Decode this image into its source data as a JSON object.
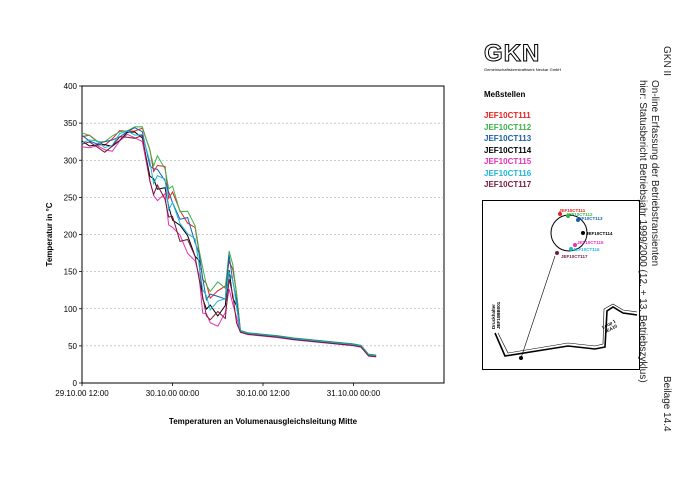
{
  "logo": {
    "text": "GKN",
    "subtitle": "Gemeinschaftskernkraftwerk Neckar GmbH"
  },
  "side_text": {
    "line1": "GKN II",
    "line2": "On-line Erfassung der Betriebstransienten",
    "line3": "hier: Statusbericht Betriebsjahr 1999/2000 (12. + 13. Betriebszyklus)",
    "beilage": "Beilage 14.4"
  },
  "legend_title": "Meßstellen",
  "inset": {
    "labels": [
      "JEF10CT111",
      "JEF10CT112",
      "JEF10CT113",
      "JEF10CT114",
      "JEF10CT115",
      "JEF10CT116",
      "JEF10CT117"
    ],
    "left_label": "Druckhalter\nJEF10BB001",
    "right_label": "Loop 1\nJEA10"
  },
  "chart_data": {
    "type": "line",
    "title": "",
    "xlabel": "Temperaturen an Volumenausgleichsleitung Mitte",
    "ylabel": "Temperatur in °C",
    "ylim": [
      0,
      400
    ],
    "yticks": [
      0,
      50,
      100,
      150,
      200,
      250,
      300,
      350,
      400
    ],
    "xlim": [
      0,
      48
    ],
    "xticks": [
      {
        "pos": 0,
        "label": "29.10.00 12:00"
      },
      {
        "pos": 12,
        "label": "30.10.00 00:00"
      },
      {
        "pos": 24,
        "label": "30.10.00 12:00"
      },
      {
        "pos": 36,
        "label": "31.10.00 00:00"
      }
    ],
    "grid": true,
    "legend_position": "right",
    "series": [
      {
        "name": "JEF10CT111",
        "color": "#e8211d",
        "offset": 3
      },
      {
        "name": "JEF10CT112",
        "color": "#3cb14a",
        "offset": 6
      },
      {
        "name": "JEF10CT113",
        "color": "#1b5faa",
        "offset": 0
      },
      {
        "name": "JEF10CT114",
        "color": "#000000",
        "offset": -8
      },
      {
        "name": "JEF10CT115",
        "color": "#e831b7",
        "offset": -15
      },
      {
        "name": "JEF10CT116",
        "color": "#1fb6d8",
        "offset": -4
      },
      {
        "name": "JEF10CT117",
        "color": "#7a1a3a",
        "offset": -12
      }
    ],
    "base_curve": [
      [
        0,
        330
      ],
      [
        1,
        328
      ],
      [
        2,
        325
      ],
      [
        3,
        322
      ],
      [
        4,
        325
      ],
      [
        5,
        335
      ],
      [
        6,
        340
      ],
      [
        7,
        340
      ],
      [
        8,
        338
      ],
      [
        9,
        300
      ],
      [
        9.5,
        285
      ],
      [
        10,
        285
      ],
      [
        11,
        280
      ],
      [
        11.5,
        250
      ],
      [
        12,
        245
      ],
      [
        13,
        225
      ],
      [
        14,
        215
      ],
      [
        15,
        195
      ],
      [
        15.5,
        175
      ],
      [
        16,
        135
      ],
      [
        16.5,
        120
      ],
      [
        17,
        115
      ],
      [
        18,
        115
      ],
      [
        19,
        120
      ],
      [
        19.5,
        165
      ],
      [
        20,
        140
      ],
      [
        20.5,
        115
      ],
      [
        21,
        70
      ],
      [
        22,
        67
      ],
      [
        24,
        65
      ],
      [
        26,
        63
      ],
      [
        28,
        60
      ],
      [
        30,
        58
      ],
      [
        32,
        56
      ],
      [
        34,
        54
      ],
      [
        36,
        52
      ],
      [
        37,
        50
      ],
      [
        38,
        38
      ],
      [
        39,
        37
      ]
    ]
  }
}
